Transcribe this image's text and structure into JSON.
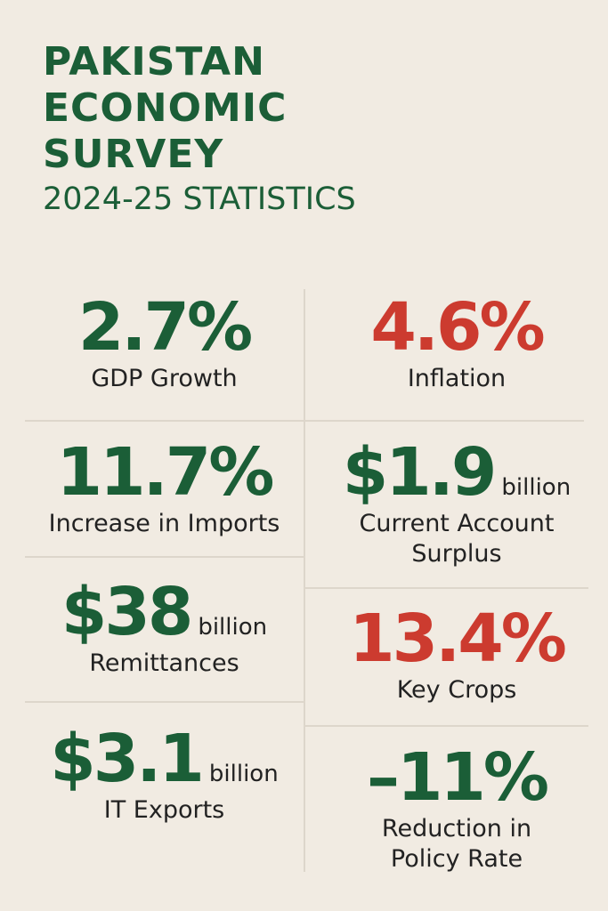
{
  "header": {
    "title_lines": [
      "PAKISTAN",
      "ECONOMIC",
      "SURVEY"
    ],
    "subtitle": "2024-25 STATISTICS"
  },
  "colors": {
    "green": "#1b5e37",
    "red": "#cc3b2f",
    "background": "#f1ebe2"
  },
  "stats": {
    "gdp": {
      "value": "2.7%",
      "label": "GDP Growth"
    },
    "inflation": {
      "value": "4.6%",
      "label": "Inflation"
    },
    "imports": {
      "value": "11.7%",
      "label": "Increase in Imports"
    },
    "current_account": {
      "value": "$1.9",
      "unit": "billion",
      "label_line1": "Current Account",
      "label_line2": "Surplus"
    },
    "remittances": {
      "value": "$38",
      "unit": "billion",
      "label": "Remittances"
    },
    "crops": {
      "value": "13.4%",
      "label": "Key Crops"
    },
    "it_exports": {
      "value": "$3.1",
      "unit": "billion",
      "label": "IT Exports"
    },
    "policy_rate": {
      "value": "–11%",
      "label_line1": "Reduction in",
      "label_line2": "Policy Rate"
    }
  }
}
